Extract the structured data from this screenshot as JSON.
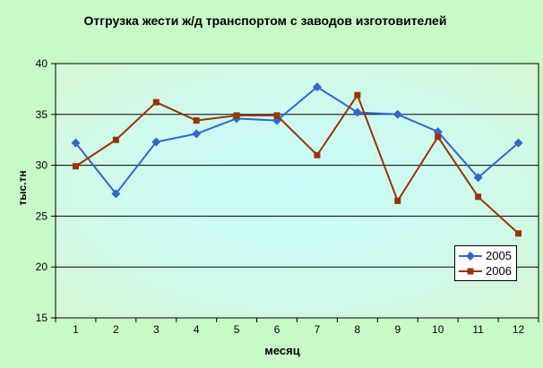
{
  "chart_data": {
    "type": "line",
    "title": "Отгрузка жести ж/д транспортом с заводов изготовителей",
    "xlabel": "месяц",
    "ylabel": "тыс.тн",
    "x": [
      1,
      2,
      3,
      4,
      5,
      6,
      7,
      8,
      9,
      10,
      11,
      12
    ],
    "series": [
      {
        "name": "2005",
        "color": "#3366cc",
        "marker": "diamond",
        "values": [
          32.2,
          27.2,
          32.3,
          33.1,
          34.6,
          34.4,
          37.7,
          35.2,
          35.0,
          33.3,
          28.8,
          32.2
        ]
      },
      {
        "name": "2006",
        "color": "#993300",
        "marker": "square",
        "values": [
          29.9,
          32.5,
          36.2,
          34.4,
          34.9,
          34.9,
          31.0,
          36.9,
          26.5,
          32.8,
          26.9,
          23.3
        ]
      }
    ],
    "ylim": [
      15,
      40
    ],
    "yticks": [
      15,
      20,
      25,
      30,
      35,
      40
    ],
    "grid": true,
    "legend_position": "inside-bottom-right",
    "colors": {
      "chart_background": "#c8fac8",
      "gridline": "#000000",
      "axis": "#000000",
      "legend_background": "#ffffff"
    },
    "plot_gradient": [
      {
        "offset": 0,
        "color": "#cafcf8"
      },
      {
        "offset": 0.45,
        "color": "#cdfaf0"
      },
      {
        "offset": 1,
        "color": "#d8f6cf"
      }
    ]
  }
}
